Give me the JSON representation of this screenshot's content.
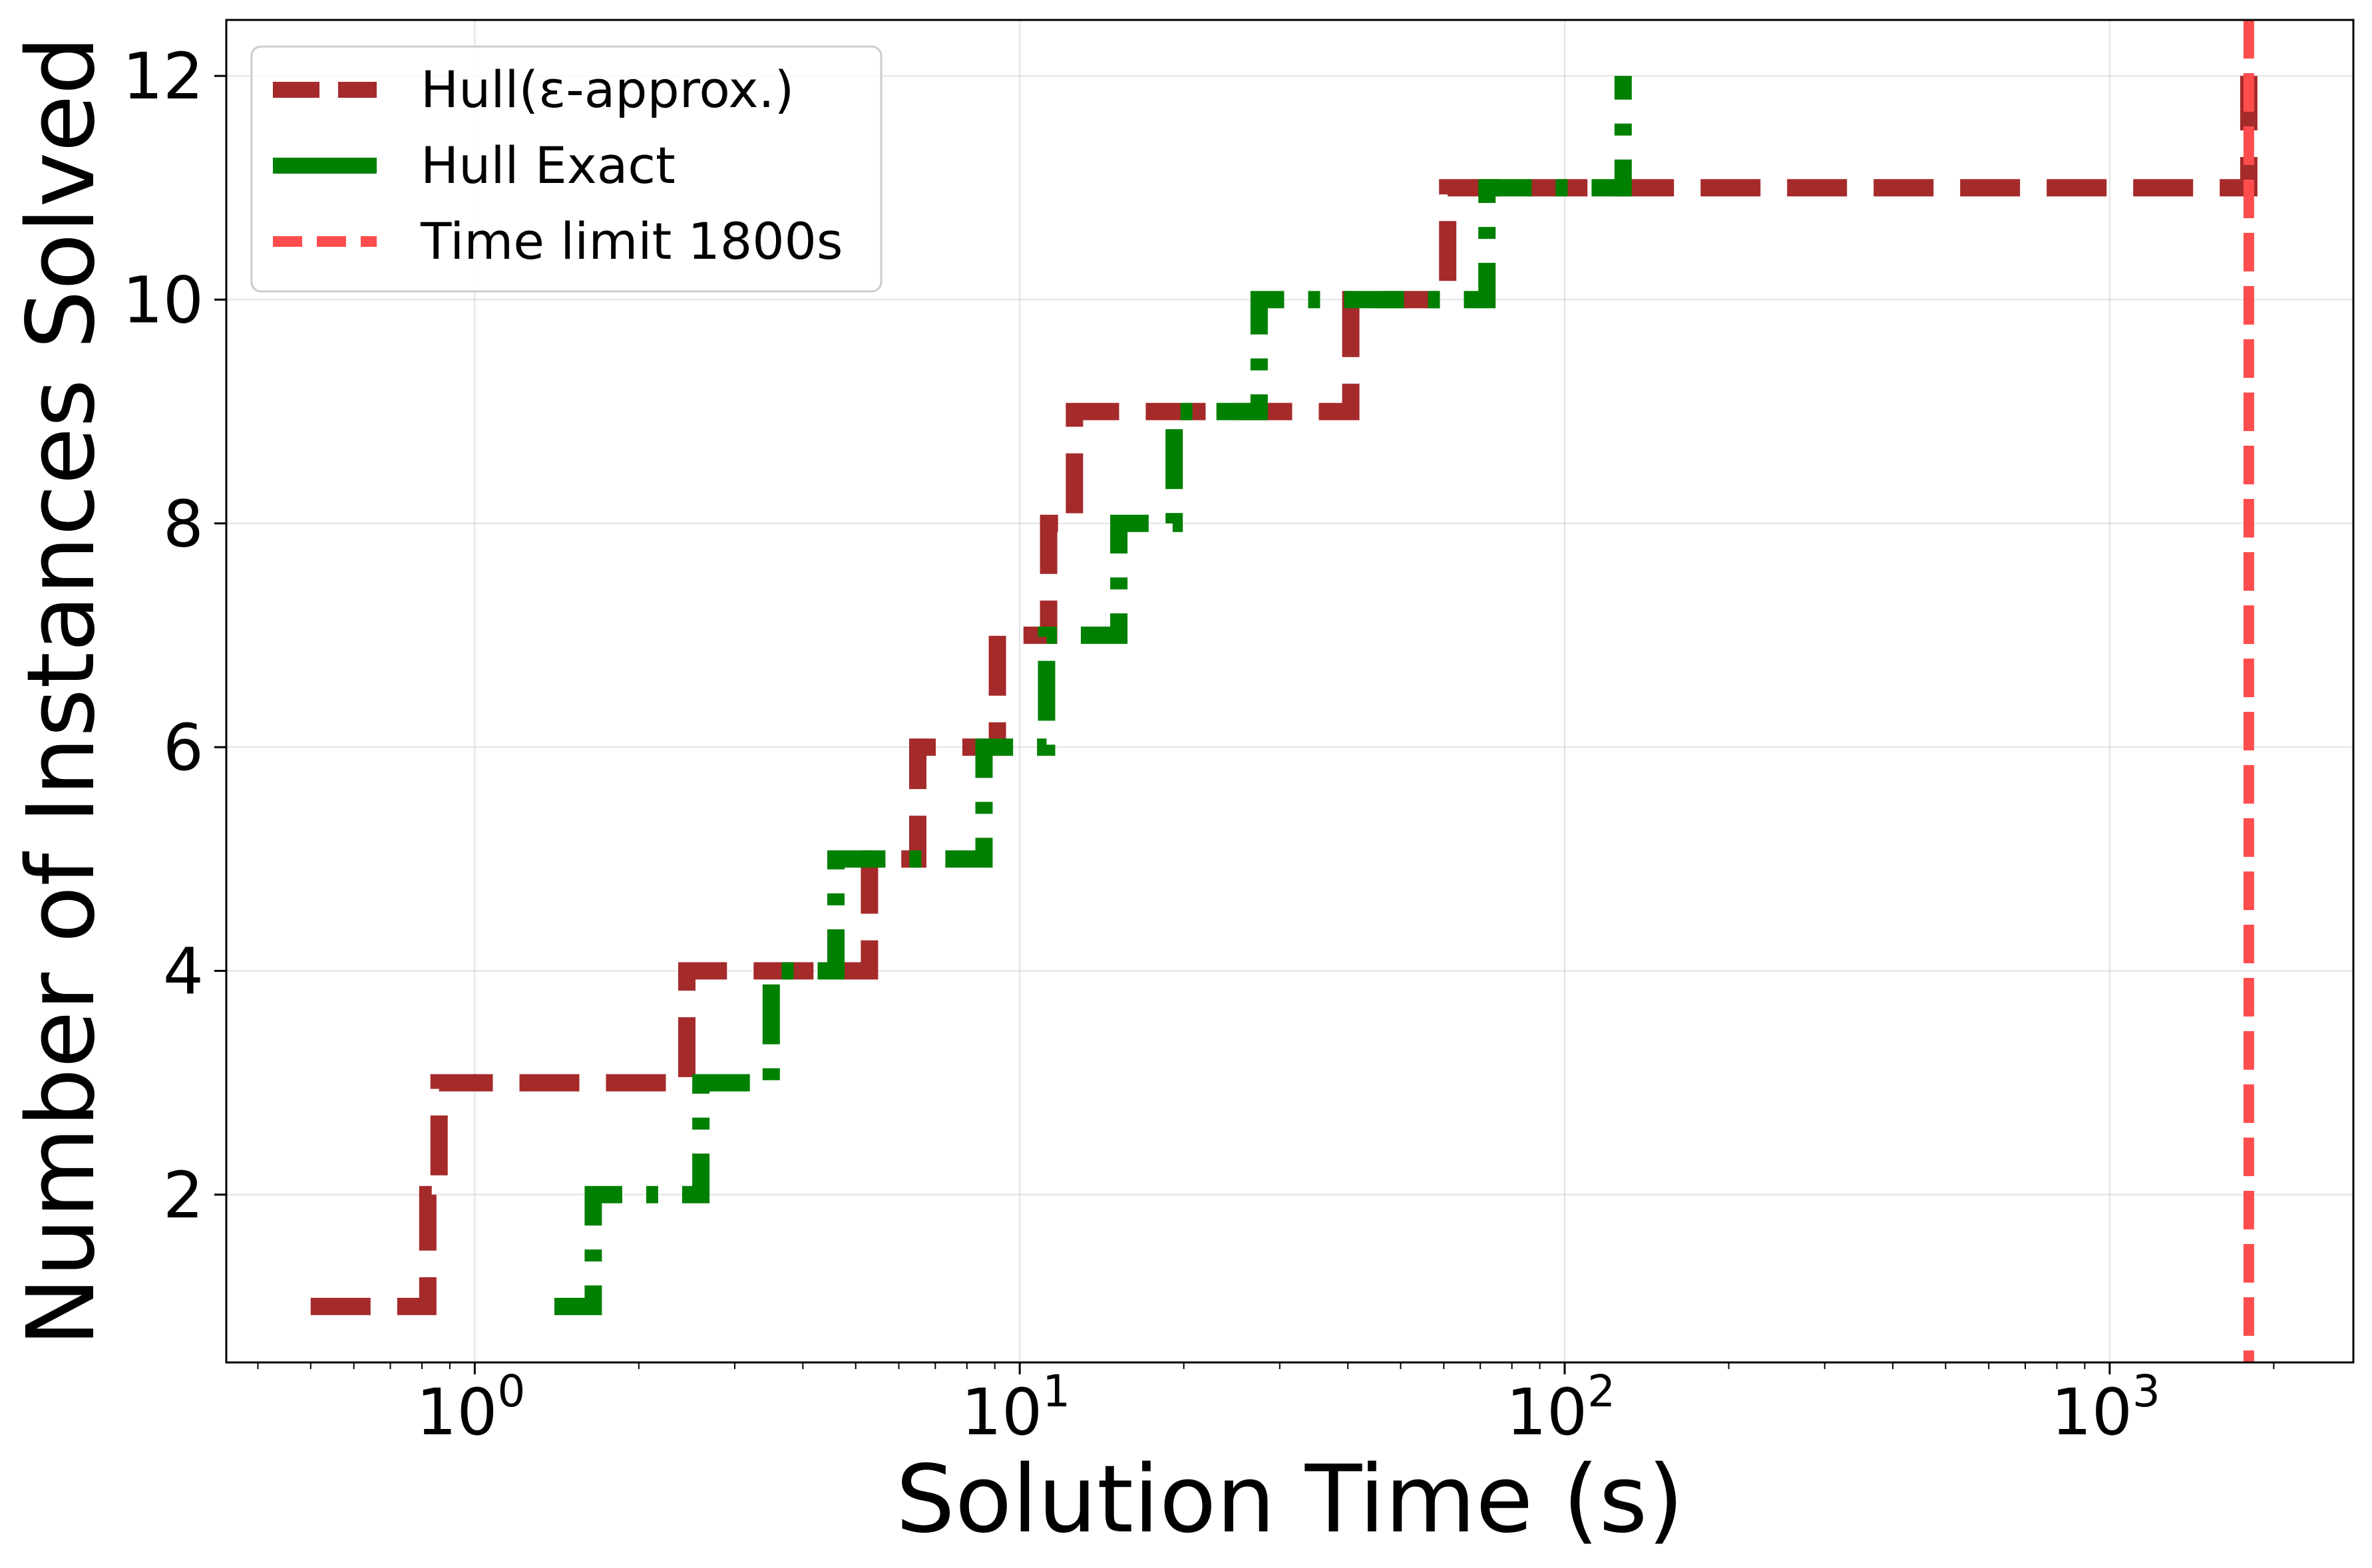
{
  "chart_data": {
    "type": "line",
    "title": "",
    "xlabel": "Solution Time (s)",
    "ylabel": "Number of Instances Solved",
    "x_scale": "log",
    "xlim": [
      0.35,
      2800
    ],
    "ylim": [
      0.5,
      12.5
    ],
    "grid": true,
    "legend_position": "top-left",
    "x_ticks": [
      {
        "value": 1,
        "base": "10",
        "exp": "0"
      },
      {
        "value": 10,
        "base": "10",
        "exp": "1"
      },
      {
        "value": 100,
        "base": "10",
        "exp": "2"
      },
      {
        "value": 1000,
        "base": "10",
        "exp": "3"
      }
    ],
    "y_ticks": [
      {
        "value": 2,
        "label": "2"
      },
      {
        "value": 4,
        "label": "4"
      },
      {
        "value": 6,
        "label": "6"
      },
      {
        "value": 8,
        "label": "8"
      },
      {
        "value": 10,
        "label": "10"
      },
      {
        "value": 12,
        "label": "12"
      }
    ],
    "series": [
      {
        "name": "Hull(ε-approx.)",
        "color": "#a52a2a",
        "style": "dashed",
        "x": [
          0.5,
          0.82,
          0.86,
          2.45,
          2.58,
          5.3,
          6.5,
          9.1,
          11.3,
          12.6,
          40.5,
          61,
          1800
        ],
        "y": [
          1,
          2,
          3,
          4,
          4,
          5,
          6,
          7,
          8,
          9,
          10,
          11,
          12
        ]
      },
      {
        "name": "Hull Exact",
        "color": "#008000",
        "style": "dashdot",
        "x": [
          1.4,
          1.65,
          2.6,
          3.5,
          4.6,
          8.6,
          11.2,
          15.2,
          19.2,
          27.5,
          72,
          128
        ],
        "y": [
          1,
          2,
          3,
          4,
          5,
          6,
          7,
          8,
          9,
          10,
          11,
          12
        ]
      }
    ],
    "reference_lines": [
      {
        "name": "Time limit 1800s",
        "x": 1800,
        "color": "#ff4d4d",
        "style": "dashed"
      }
    ]
  }
}
